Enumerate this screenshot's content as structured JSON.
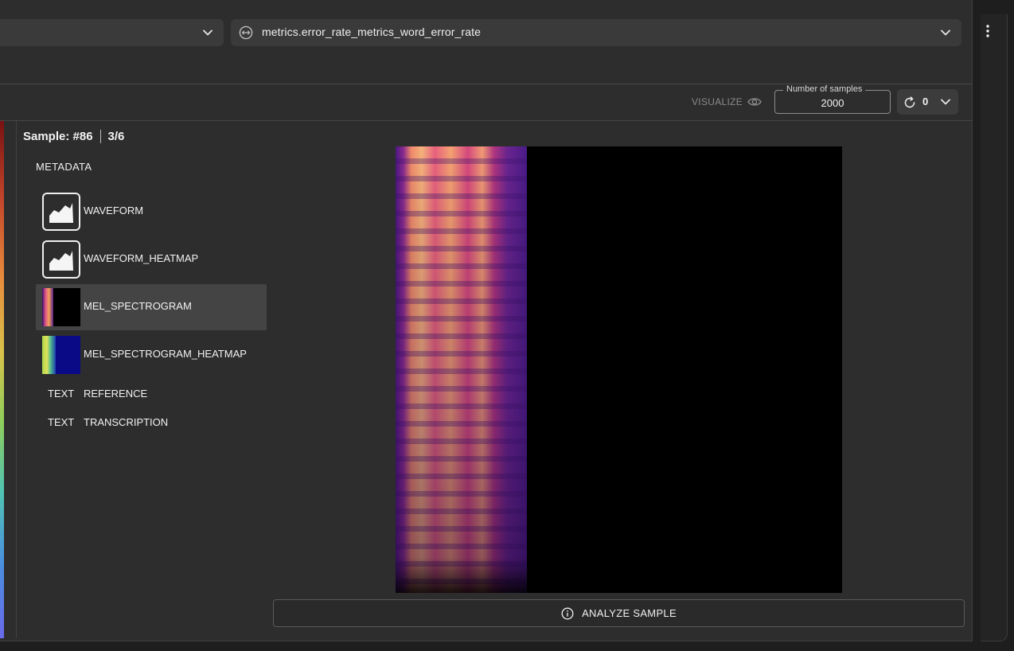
{
  "metric_select": {
    "value": "metrics.error_rate_metrics_word_error_rate",
    "icon": "arrows-horizontal-icon"
  },
  "toolbar": {
    "visualize_label": "VISUALIZE",
    "samples_label": "Number of samples",
    "samples_value": "2000",
    "refresh_count": "0"
  },
  "sample": {
    "id": "Sample: #86",
    "position": "3/6",
    "metadata_label": "METADATA"
  },
  "items": [
    {
      "label": "WAVEFORM",
      "icon": "area-chart-icon"
    },
    {
      "label": "WAVEFORM_HEATMAP",
      "icon": "area-chart-icon"
    },
    {
      "label": "MEL_SPECTROGRAM",
      "icon": "spectrogram-thumbnail"
    },
    {
      "label": "MEL_SPECTROGRAM_HEATMAP",
      "icon": "heatmap-thumbnail"
    }
  ],
  "text_items": [
    {
      "kind": "TEXT",
      "label": "REFERENCE"
    },
    {
      "kind": "TEXT",
      "label": "TRANSCRIPTION"
    }
  ],
  "actions": {
    "analyze_label": "ANALYZE SAMPLE"
  },
  "colors": {
    "background": "#2d2d2d",
    "select_bg": "#3a3a3a",
    "selected_item": "#444444"
  }
}
